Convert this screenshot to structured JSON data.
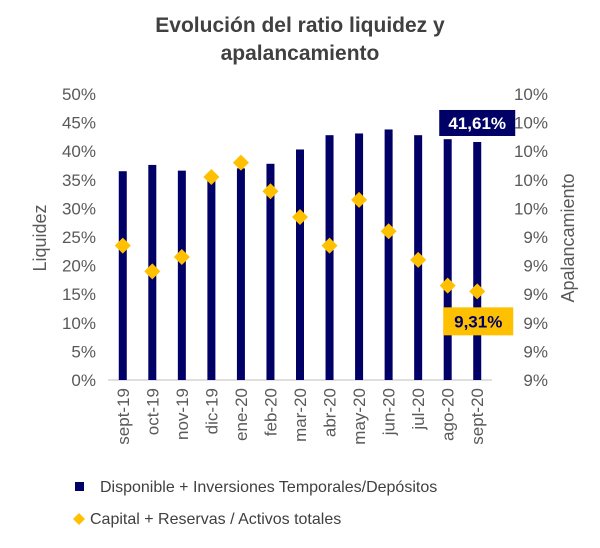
{
  "chart_data": {
    "type": "bar",
    "title_line1": "Evolución  del ratio liquidez  y",
    "title_line2": "apalancamiento",
    "ylabel": "Liquidez",
    "y2label": "Apalancamiento",
    "ylim": [
      0,
      50
    ],
    "y2lim": [
      9,
      10
    ],
    "y_ticks": [
      "0%",
      "5%",
      "10%",
      "15%",
      "20%",
      "25%",
      "30%",
      "35%",
      "40%",
      "45%",
      "50%"
    ],
    "y2_ticks": [
      "9%",
      "9%",
      "9%",
      "9%",
      "9%",
      "9%",
      "10%",
      "10%",
      "10%",
      "10%",
      "10%"
    ],
    "categories": [
      "sept-19",
      "oct-19",
      "nov-19",
      "dic-19",
      "ene-20",
      "feb-20",
      "mar-20",
      "abr-20",
      "may-20",
      "jun-20",
      "jul-20",
      "ago-20",
      "sept-20"
    ],
    "series": [
      {
        "name": "Disponible + Inversiones Temporales/Depósitos",
        "type": "bar",
        "axis": "left",
        "color": "#000066",
        "values": [
          36.5,
          37.6,
          36.6,
          35.5,
          37.0,
          37.8,
          40.3,
          42.8,
          43.1,
          43.8,
          42.8,
          42.1,
          41.61
        ]
      },
      {
        "name": "Capital + Reservas / Activos totales",
        "type": "scatter",
        "axis": "right",
        "marker": "diamond",
        "color": "#FFC000",
        "values": [
          9.47,
          9.38,
          9.43,
          9.71,
          9.76,
          9.66,
          9.57,
          9.47,
          9.63,
          9.52,
          9.42,
          9.33,
          9.31
        ]
      }
    ],
    "callouts": [
      {
        "series": 0,
        "index": 12,
        "text": "41,61%",
        "bg": "#000066",
        "color": "#ffffff"
      },
      {
        "series": 1,
        "index": 12,
        "text": "9,31%",
        "bg": "#FFC000",
        "color": "#000066"
      }
    ],
    "legend_position": "bottom"
  }
}
